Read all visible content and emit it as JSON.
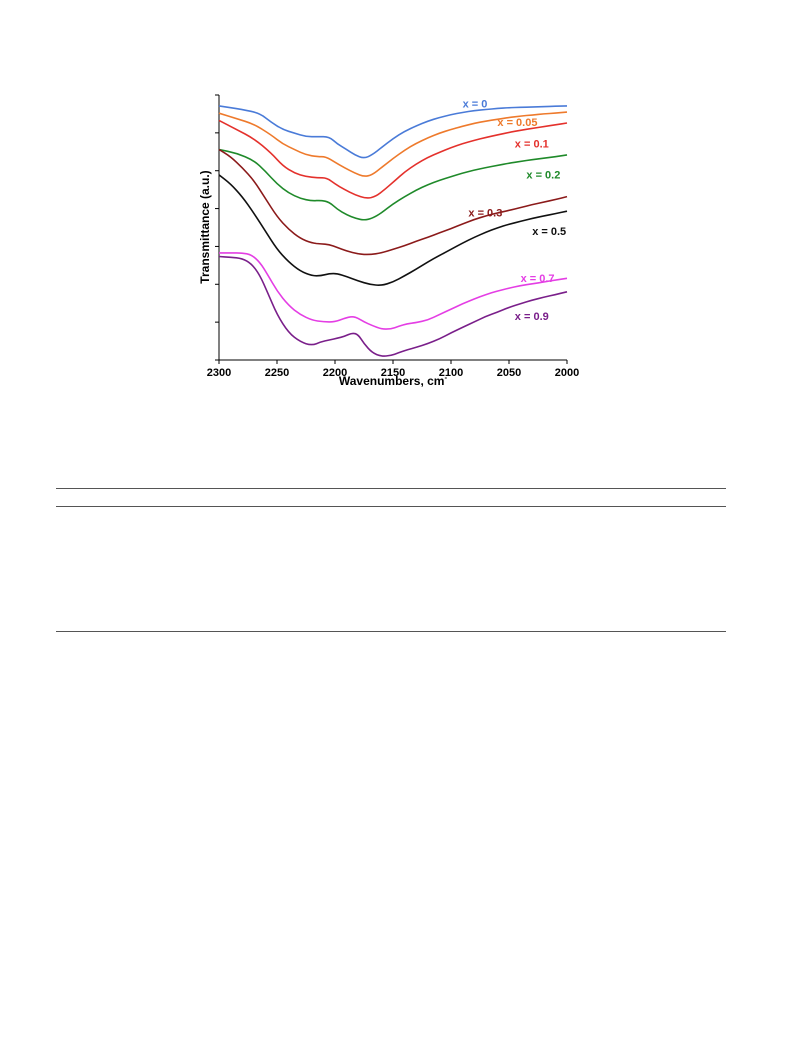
{
  "chart_data": {
    "type": "line",
    "xlabel": "Wavenumbers, cm",
    "xlabel_sup": "-",
    "ylabel": "Transmittance (a.u.)",
    "xlim": [
      2300,
      2000
    ],
    "x_reversed": true,
    "x_ticks": [
      2300,
      2250,
      2200,
      2150,
      2100,
      2050,
      2000
    ],
    "y_ticks_count": 7,
    "ylim": [
      0,
      7.3
    ],
    "grid": false,
    "legend": "inline labels at right",
    "series": [
      {
        "name": "x = 0",
        "color": "#4a7bd8",
        "x": [
          2300,
          2280,
          2265,
          2255,
          2245,
          2235,
          2225,
          2215,
          2205,
          2198,
          2190,
          2183,
          2175,
          2168,
          2160,
          2150,
          2140,
          2130,
          2120,
          2110,
          2100,
          2090,
          2080,
          2070,
          2060,
          2050,
          2040,
          2030,
          2020,
          2010,
          2000
        ],
        "y": [
          7.0,
          6.9,
          6.8,
          6.55,
          6.35,
          6.25,
          6.15,
          6.15,
          6.15,
          5.95,
          5.8,
          5.65,
          5.55,
          5.65,
          5.85,
          6.1,
          6.3,
          6.45,
          6.58,
          6.68,
          6.76,
          6.82,
          6.87,
          6.9,
          6.93,
          6.95,
          6.96,
          6.97,
          6.98,
          6.99,
          7.0
        ]
      },
      {
        "name": "x = 0.05",
        "color": "#ee7a2c",
        "x": [
          2300,
          2285,
          2270,
          2255,
          2245,
          2235,
          2225,
          2215,
          2208,
          2200,
          2192,
          2183,
          2175,
          2168,
          2160,
          2150,
          2140,
          2130,
          2120,
          2110,
          2100,
          2090,
          2080,
          2070,
          2060,
          2050,
          2040,
          2030,
          2020,
          2010,
          2000
        ],
        "y": [
          6.8,
          6.65,
          6.5,
          6.2,
          5.95,
          5.8,
          5.65,
          5.6,
          5.6,
          5.45,
          5.3,
          5.15,
          5.05,
          5.1,
          5.3,
          5.55,
          5.78,
          5.97,
          6.12,
          6.25,
          6.35,
          6.44,
          6.52,
          6.58,
          6.63,
          6.68,
          6.72,
          6.75,
          6.78,
          6.8,
          6.83
        ]
      },
      {
        "name": "x = 0.1",
        "color": "#e4312c",
        "x": [
          2300,
          2285,
          2270,
          2255,
          2245,
          2235,
          2225,
          2215,
          2207,
          2200,
          2192,
          2183,
          2173,
          2165,
          2157,
          2148,
          2140,
          2130,
          2120,
          2110,
          2100,
          2090,
          2080,
          2070,
          2060,
          2050,
          2040,
          2030,
          2020,
          2010,
          2000
        ],
        "y": [
          6.6,
          6.35,
          6.1,
          5.7,
          5.35,
          5.15,
          5.05,
          5.02,
          5.02,
          4.85,
          4.7,
          4.55,
          4.45,
          4.5,
          4.7,
          4.95,
          5.18,
          5.4,
          5.58,
          5.72,
          5.85,
          5.96,
          6.05,
          6.13,
          6.2,
          6.27,
          6.33,
          6.38,
          6.43,
          6.48,
          6.53
        ]
      },
      {
        "name": "x = 0.2",
        "color": "#1f8a2a",
        "x": [
          2300,
          2285,
          2270,
          2260,
          2250,
          2240,
          2230,
          2220,
          2212,
          2205,
          2198,
          2190,
          2182,
          2175,
          2168,
          2160,
          2150,
          2140,
          2130,
          2120,
          2110,
          2100,
          2090,
          2080,
          2070,
          2060,
          2050,
          2040,
          2030,
          2020,
          2010,
          2000
        ],
        "y": [
          5.8,
          5.7,
          5.5,
          5.2,
          4.85,
          4.6,
          4.45,
          4.38,
          4.4,
          4.35,
          4.15,
          4.0,
          3.9,
          3.85,
          3.9,
          4.05,
          4.3,
          4.5,
          4.68,
          4.83,
          4.95,
          5.05,
          5.15,
          5.23,
          5.3,
          5.36,
          5.42,
          5.47,
          5.52,
          5.56,
          5.6,
          5.65
        ]
      },
      {
        "name": "x = 0.3",
        "color": "#8b1a1a",
        "x": [
          2300,
          2290,
          2280,
          2270,
          2260,
          2250,
          2240,
          2230,
          2220,
          2212,
          2205,
          2198,
          2190,
          2180,
          2170,
          2160,
          2150,
          2140,
          2130,
          2120,
          2110,
          2100,
          2090,
          2080,
          2070,
          2060,
          2050,
          2040,
          2030,
          2020,
          2010,
          2000
        ],
        "y": [
          5.8,
          5.6,
          5.3,
          4.95,
          4.45,
          3.95,
          3.6,
          3.35,
          3.22,
          3.2,
          3.18,
          3.1,
          3.0,
          2.92,
          2.9,
          2.95,
          3.05,
          3.15,
          3.27,
          3.38,
          3.5,
          3.62,
          3.75,
          3.87,
          3.97,
          4.05,
          4.12,
          4.2,
          4.28,
          4.35,
          4.42,
          4.5
        ]
      },
      {
        "name": "x = 0.5",
        "color": "#111111",
        "x": [
          2300,
          2290,
          2280,
          2270,
          2260,
          2250,
          2240,
          2230,
          2220,
          2212,
          2205,
          2198,
          2190,
          2180,
          2170,
          2160,
          2150,
          2140,
          2130,
          2120,
          2110,
          2100,
          2090,
          2080,
          2070,
          2060,
          2050,
          2040,
          2030,
          2020,
          2010,
          2000
        ],
        "y": [
          5.1,
          4.85,
          4.5,
          4.05,
          3.55,
          3.05,
          2.7,
          2.45,
          2.32,
          2.32,
          2.38,
          2.38,
          2.3,
          2.18,
          2.08,
          2.05,
          2.15,
          2.32,
          2.5,
          2.7,
          2.88,
          3.05,
          3.22,
          3.38,
          3.52,
          3.64,
          3.74,
          3.82,
          3.9,
          3.97,
          4.03,
          4.1
        ]
      },
      {
        "name": "x = 0.7",
        "color": "#e43ee4",
        "x": [
          2300,
          2290,
          2280,
          2272,
          2265,
          2258,
          2250,
          2240,
          2230,
          2220,
          2210,
          2200,
          2192,
          2185,
          2180,
          2175,
          2168,
          2160,
          2152,
          2145,
          2138,
          2130,
          2120,
          2110,
          2100,
          2090,
          2080,
          2070,
          2060,
          2050,
          2040,
          2030,
          2020,
          2010,
          2000
        ],
        "y": [
          2.95,
          2.95,
          2.95,
          2.9,
          2.7,
          2.35,
          1.9,
          1.5,
          1.25,
          1.1,
          1.05,
          1.05,
          1.15,
          1.2,
          1.15,
          1.05,
          0.95,
          0.85,
          0.85,
          0.93,
          1.0,
          1.03,
          1.1,
          1.25,
          1.4,
          1.55,
          1.68,
          1.8,
          1.9,
          1.98,
          2.05,
          2.1,
          2.15,
          2.2,
          2.25
        ]
      },
      {
        "name": "x = 0.9",
        "color": "#7a1f8a",
        "x": [
          2300,
          2290,
          2280,
          2272,
          2265,
          2258,
          2250,
          2240,
          2230,
          2220,
          2212,
          2205,
          2198,
          2192,
          2185,
          2180,
          2175,
          2168,
          2160,
          2152,
          2145,
          2138,
          2130,
          2120,
          2110,
          2100,
          2090,
          2080,
          2070,
          2060,
          2050,
          2040,
          2030,
          2020,
          2010,
          2000
        ],
        "y": [
          2.85,
          2.83,
          2.8,
          2.65,
          2.35,
          1.85,
          1.25,
          0.75,
          0.5,
          0.4,
          0.5,
          0.55,
          0.6,
          0.65,
          0.75,
          0.7,
          0.45,
          0.2,
          0.1,
          0.12,
          0.2,
          0.28,
          0.35,
          0.45,
          0.58,
          0.75,
          0.9,
          1.05,
          1.2,
          1.32,
          1.45,
          1.55,
          1.65,
          1.73,
          1.8,
          1.88
        ]
      }
    ]
  }
}
